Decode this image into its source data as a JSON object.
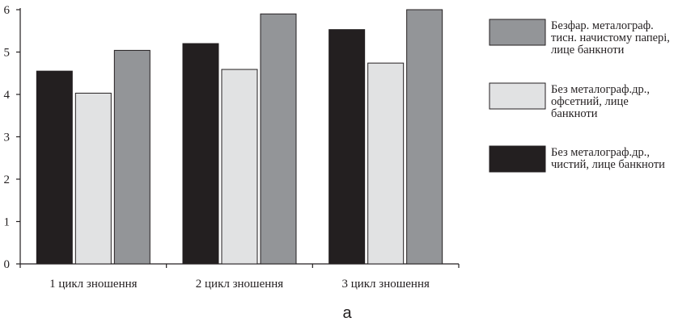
{
  "chart_data": {
    "type": "bar",
    "categories": [
      "1 цикл зношення",
      "2 цикл зношення",
      "3 цикл зношення"
    ],
    "ylim": [
      0,
      6
    ],
    "yticks": [
      "0",
      "1",
      "2",
      "3",
      "4",
      "5",
      "6"
    ],
    "series": [
      {
        "name": "Без металограф.др., чистий, лице банкноти",
        "color": "#231f20",
        "values": [
          4.55,
          5.2,
          5.53
        ]
      },
      {
        "name": "Без металограф.др., офсетний, лице банкноти",
        "color": "#e1e2e3",
        "values": [
          4.03,
          4.59,
          4.74
        ]
      },
      {
        "name": "Безфар. металограф. тисн. начистому папері, лице банкноти",
        "color": "#939598",
        "values": [
          5.04,
          5.9,
          6.0
        ]
      }
    ],
    "legend": [
      {
        "lines": [
          "Безфар. металограф.",
          "тисн. начистому папері,",
          "лице банкноти"
        ],
        "color": "#939598"
      },
      {
        "lines": [
          "Без металограф.др.,",
          "офсетний, лице",
          "банкноти"
        ],
        "color": "#e1e2e3"
      },
      {
        "lines": [
          "Без металограф.др.,",
          "чистий, лице банкноти"
        ],
        "color": "#231f20"
      }
    ],
    "legend_position": "right",
    "grid": false,
    "caption": "a"
  }
}
